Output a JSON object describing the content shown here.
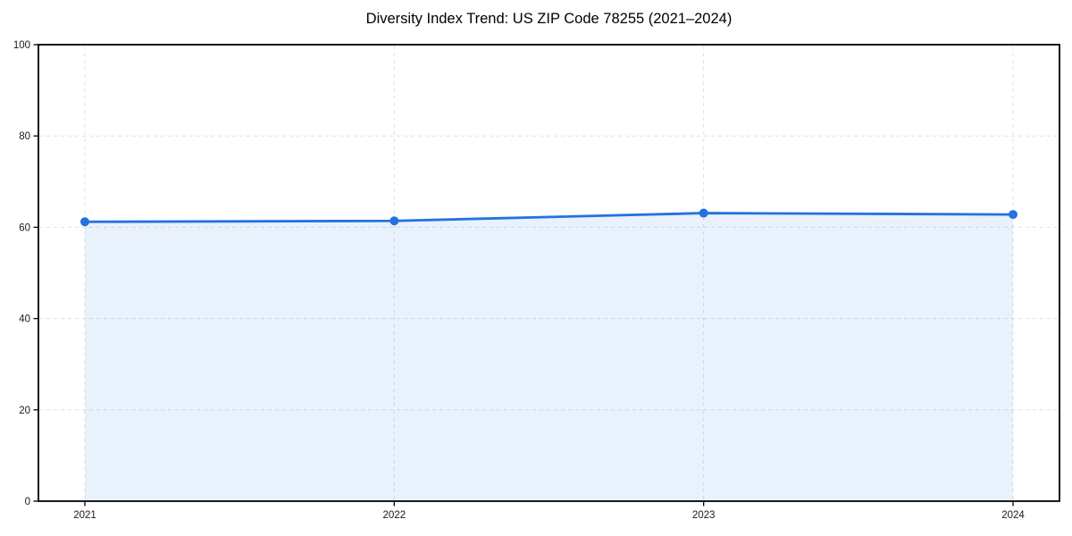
{
  "chart_data": {
    "type": "area",
    "title": "Diversity Index Trend: US ZIP Code 78255 (2021–2024)",
    "categories": [
      "2021",
      "2022",
      "2023",
      "2024"
    ],
    "values": [
      61.2,
      61.4,
      63.1,
      62.8
    ],
    "series_name": "Diversity Index",
    "xlabel": "",
    "ylabel": "",
    "ylim": [
      0,
      100
    ],
    "yticks": [
      0,
      20,
      40,
      60,
      80,
      100
    ],
    "grid": true,
    "grid_style": "dashed",
    "legend": "none",
    "marker": "circle",
    "colors": {
      "line": "#2272e0",
      "marker": "#2272e0",
      "area_fill_on_white": "#e8effc",
      "grid": "#e0e0e0",
      "axis": "#000000",
      "tick_label": "#1a1a1a",
      "title": "#000000",
      "background": "#ffffff"
    }
  }
}
